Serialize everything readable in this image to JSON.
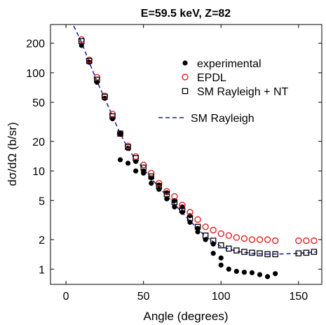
{
  "chart_data": {
    "type": "scatter",
    "title": "E=59.5 keV, Z=82",
    "xlabel": "Angle (degrees)",
    "ylabel": "dσ/dΩ  (b/sr)",
    "xlim": [
      -10,
      165
    ],
    "ylim": [
      0.7,
      310
    ],
    "yscale": "log",
    "x_ticks": [
      0,
      50,
      100,
      150
    ],
    "y_ticks": [
      1,
      2,
      5,
      10,
      20,
      50,
      100,
      200
    ],
    "legend_position": "top-right",
    "grid": false,
    "series": [
      {
        "name": "experimental",
        "marker": "filled-circle",
        "color": "#000000",
        "points": [
          [
            10,
            190
          ],
          [
            15,
            128
          ],
          [
            20,
            80
          ],
          [
            25,
            55
          ],
          [
            30,
            34
          ],
          [
            35,
            24
          ],
          [
            35,
            13
          ],
          [
            40,
            17
          ],
          [
            40,
            12
          ],
          [
            45,
            12.5
          ],
          [
            45,
            10
          ],
          [
            50,
            10
          ],
          [
            50,
            9.5
          ],
          [
            55,
            8.5
          ],
          [
            55,
            7.5
          ],
          [
            60,
            7.2
          ],
          [
            60,
            6.5
          ],
          [
            65,
            6
          ],
          [
            65,
            5.2
          ],
          [
            70,
            5
          ],
          [
            70,
            4.3
          ],
          [
            75,
            4.3
          ],
          [
            75,
            3.8
          ],
          [
            80,
            3.5
          ],
          [
            80,
            3.0
          ],
          [
            85,
            2.6
          ],
          [
            85,
            2.4
          ],
          [
            90,
            2.0
          ],
          [
            95,
            1.8
          ],
          [
            95,
            1.45
          ],
          [
            100,
            1.3
          ],
          [
            100,
            1.1
          ],
          [
            105,
            1.0
          ],
          [
            110,
            0.95
          ],
          [
            115,
            0.93
          ],
          [
            120,
            0.92
          ],
          [
            125,
            0.88
          ],
          [
            130,
            0.84
          ],
          [
            135,
            0.9
          ]
        ]
      },
      {
        "name": "EPDL",
        "marker": "open-circle",
        "color": "#e02020",
        "points": [
          [
            10,
            218
          ],
          [
            15,
            135
          ],
          [
            20,
            90
          ],
          [
            25,
            58
          ],
          [
            30,
            38
          ],
          [
            35,
            24
          ],
          [
            40,
            18
          ],
          [
            45,
            14
          ],
          [
            50,
            11.5
          ],
          [
            55,
            9.5
          ],
          [
            60,
            7.5
          ],
          [
            65,
            6.2
          ],
          [
            70,
            5.5
          ],
          [
            75,
            4.5
          ],
          [
            80,
            3.8
          ],
          [
            85,
            3.2
          ],
          [
            90,
            2.7
          ],
          [
            95,
            2.5
          ],
          [
            100,
            2.3
          ],
          [
            105,
            2.2
          ],
          [
            110,
            2.1
          ],
          [
            115,
            2.05
          ],
          [
            120,
            2.0
          ],
          [
            125,
            2.0
          ],
          [
            130,
            2.0
          ],
          [
            135,
            1.95
          ],
          [
            150,
            1.95
          ],
          [
            155,
            1.95
          ],
          [
            160,
            1.95
          ]
        ]
      },
      {
        "name": "SM Rayleigh + NT",
        "marker": "open-square",
        "color": "#000000",
        "points": [
          [
            10,
            210
          ],
          [
            15,
            132
          ],
          [
            20,
            85
          ],
          [
            25,
            57
          ],
          [
            30,
            36
          ],
          [
            35,
            24
          ],
          [
            40,
            17.5
          ],
          [
            45,
            13.5
          ],
          [
            50,
            10.8
          ],
          [
            55,
            8.8
          ],
          [
            60,
            7.0
          ],
          [
            65,
            5.8
          ],
          [
            70,
            4.8
          ],
          [
            75,
            4.0
          ],
          [
            80,
            3.3
          ],
          [
            85,
            2.7
          ],
          [
            90,
            2.2
          ],
          [
            95,
            1.95
          ],
          [
            100,
            1.75
          ],
          [
            105,
            1.62
          ],
          [
            110,
            1.55
          ],
          [
            115,
            1.5
          ],
          [
            120,
            1.47
          ],
          [
            125,
            1.45
          ],
          [
            130,
            1.42
          ],
          [
            135,
            1.42
          ],
          [
            150,
            1.45
          ],
          [
            155,
            1.47
          ],
          [
            160,
            1.5
          ]
        ]
      },
      {
        "name": "SM Rayleigh",
        "line_style": "dashed",
        "color": "#1a1aa8",
        "points": [
          [
            5,
            300
          ],
          [
            10,
            205
          ],
          [
            15,
            128
          ],
          [
            20,
            82
          ],
          [
            25,
            55
          ],
          [
            30,
            36
          ],
          [
            35,
            24
          ],
          [
            40,
            17
          ],
          [
            45,
            13
          ],
          [
            50,
            10.5
          ],
          [
            60,
            6.8
          ],
          [
            70,
            4.6
          ],
          [
            80,
            3.1
          ],
          [
            90,
            2.15
          ],
          [
            100,
            1.7
          ],
          [
            110,
            1.52
          ],
          [
            120,
            1.45
          ],
          [
            130,
            1.42
          ],
          [
            140,
            1.43
          ],
          [
            150,
            1.45
          ],
          [
            162,
            1.5
          ]
        ]
      }
    ]
  }
}
